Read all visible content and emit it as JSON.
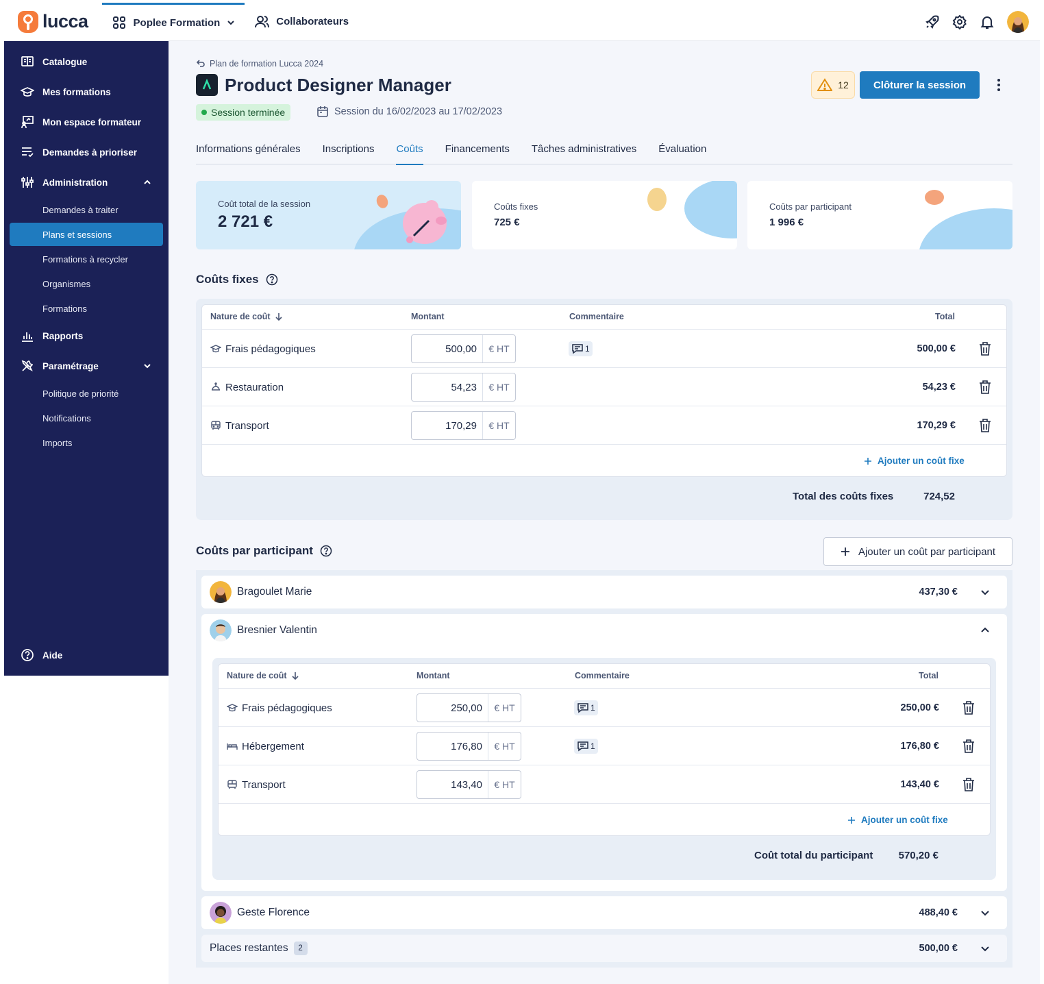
{
  "app": {
    "logo_text": "lucca"
  },
  "topnav": {
    "items": [
      {
        "label": "Poplee Formation"
      },
      {
        "label": "Collaborateurs"
      }
    ]
  },
  "sidebar": {
    "items": [
      {
        "label": "Catalogue"
      },
      {
        "label": "Mes formations"
      },
      {
        "label": "Mon espace formateur"
      },
      {
        "label": "Demandes à prioriser"
      },
      {
        "label": "Administration"
      },
      {
        "label": "Rapports"
      },
      {
        "label": "Paramétrage"
      },
      {
        "label": "Aide"
      }
    ],
    "admin_sub": [
      "Demandes à traiter",
      "Plans et sessions",
      "Formations à recycler",
      "Organismes",
      "Formations"
    ],
    "param_sub": [
      "Politique de priorité",
      "Notifications",
      "Imports"
    ]
  },
  "header": {
    "breadcrumb": "Plan de formation Lucca 2024",
    "title": "Product Designer Manager",
    "status": "Session terminée",
    "dates": "Session du 16/02/2023 au 17/02/2023",
    "warning_count": "12",
    "primary_action": "Clôturer la session"
  },
  "tabs": [
    "Informations générales",
    "Inscriptions",
    "Coûts",
    "Financements",
    "Tâches administratives",
    "Évaluation"
  ],
  "summary": [
    {
      "label": "Coût total de la session",
      "value": "2 721 €"
    },
    {
      "label": "Coûts fixes",
      "value": "725 €"
    },
    {
      "label": "Coûts par participant",
      "value": "1 996 €"
    }
  ],
  "fixed_costs": {
    "title": "Coûts fixes",
    "headers": {
      "nature": "Nature de coût",
      "amount": "Montant",
      "comment": "Commentaire",
      "total": "Total"
    },
    "unit": "€ HT",
    "rows": [
      {
        "nature": "Frais pédagogiques",
        "amount": "500,00",
        "comments": "1",
        "total": "500,00 €"
      },
      {
        "nature": "Restauration",
        "amount": "54,23",
        "comments": "",
        "total": "54,23 €"
      },
      {
        "nature": "Transport",
        "amount": "170,29",
        "comments": "",
        "total": "170,29 €"
      }
    ],
    "add_label": "Ajouter un coût fixe",
    "sum_label": "Total des coûts fixes",
    "sum_value": "724,52"
  },
  "participant_costs": {
    "title": "Coûts par participant",
    "add_button": "Ajouter un coût par participant",
    "participants": [
      {
        "name": "Bragoulet Marie",
        "total": "437,30 €"
      },
      {
        "name": "Bresnier Valentin",
        "total": ""
      },
      {
        "name": "Geste Florence",
        "total": "488,40 €"
      }
    ],
    "expanded": {
      "headers": {
        "nature": "Nature de coût",
        "amount": "Montant",
        "comment": "Commentaire",
        "total": "Total"
      },
      "unit": "€ HT",
      "rows": [
        {
          "nature": "Frais pédagogiques",
          "amount": "250,00",
          "comments": "1",
          "total": "250,00 €"
        },
        {
          "nature": "Hébergement",
          "amount": "176,80",
          "comments": "1",
          "total": "176,80 €"
        },
        {
          "nature": "Transport",
          "amount": "143,40",
          "comments": "",
          "total": "143,40 €"
        }
      ],
      "add_label": "Ajouter un coût fixe",
      "sum_label": "Coût total du participant",
      "sum_value": "570,20 €"
    },
    "remaining": {
      "label": "Places restantes",
      "count": "2",
      "total": "500,00 €"
    }
  },
  "colors": {
    "sidebar": "#1b2157",
    "accent": "#1f7bbf",
    "brand": "#f57b3b"
  }
}
